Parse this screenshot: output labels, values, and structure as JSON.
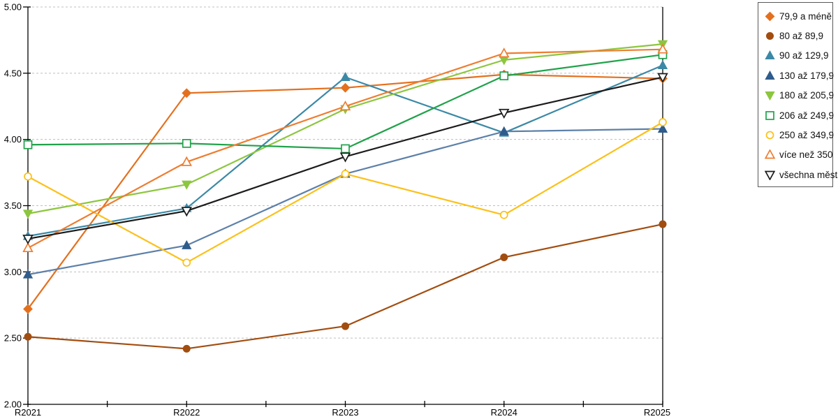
{
  "chart_data": {
    "type": "line",
    "title": "",
    "xlabel": "",
    "ylabel": "",
    "categories": [
      "R2021",
      "R2022",
      "R2023",
      "R2024",
      "R2025"
    ],
    "series": [
      {
        "name": "79,9 a méně",
        "marker": "diamond",
        "fill": "filled",
        "color": "#E4701E",
        "values": [
          2.72,
          4.35,
          4.39,
          4.49,
          4.46
        ]
      },
      {
        "name": "80 až 89,9",
        "marker": "circle",
        "fill": "filled",
        "color": "#A24D10",
        "values": [
          2.51,
          2.42,
          2.59,
          3.11,
          3.36
        ]
      },
      {
        "name": "90 až 129,9",
        "marker": "triangle-up",
        "fill": "filled",
        "color": "#3B89A6",
        "values": [
          3.27,
          3.48,
          4.47,
          4.05,
          4.56
        ]
      },
      {
        "name": "130 až 179,9",
        "marker": "triangle-up",
        "fill": "filled",
        "color": "#2E5C8C",
        "line_color": "#5D80A9",
        "values": [
          2.98,
          3.2,
          3.74,
          4.06,
          4.08
        ]
      },
      {
        "name": "180 až 205,9",
        "marker": "triangle-down",
        "fill": "filled",
        "color": "#8CC63E",
        "values": [
          3.44,
          3.66,
          4.23,
          4.6,
          4.72
        ]
      },
      {
        "name": "206 až 249,9",
        "marker": "square",
        "fill": "hollow",
        "color": "#20A24A",
        "values": [
          3.96,
          3.97,
          3.93,
          4.48,
          4.64
        ]
      },
      {
        "name": "250 až 349,9",
        "marker": "circle",
        "fill": "hollow",
        "color": "#FCC019",
        "values": [
          3.72,
          3.07,
          3.74,
          3.43,
          4.13
        ]
      },
      {
        "name": "více než 350",
        "marker": "triangle-up",
        "fill": "hollow",
        "color": "#EE7D30",
        "values": [
          3.18,
          3.83,
          4.25,
          4.65,
          4.68
        ]
      },
      {
        "name": "všechna města",
        "marker": "triangle-down",
        "fill": "hollow",
        "color": "#1C1C1C",
        "values": [
          3.25,
          3.46,
          3.87,
          4.2,
          4.47
        ]
      }
    ],
    "ylim": [
      2.0,
      5.0
    ],
    "ytick_step": 0.5,
    "ytick_labels": [
      "5.00",
      "4.50",
      "4.00",
      "3.50",
      "3.00",
      "2.50",
      "2.00"
    ],
    "grid": "horizontal-dashed",
    "gridline_color": "#BFBFBF",
    "axis_color": "#000000",
    "legend_position": "right"
  }
}
